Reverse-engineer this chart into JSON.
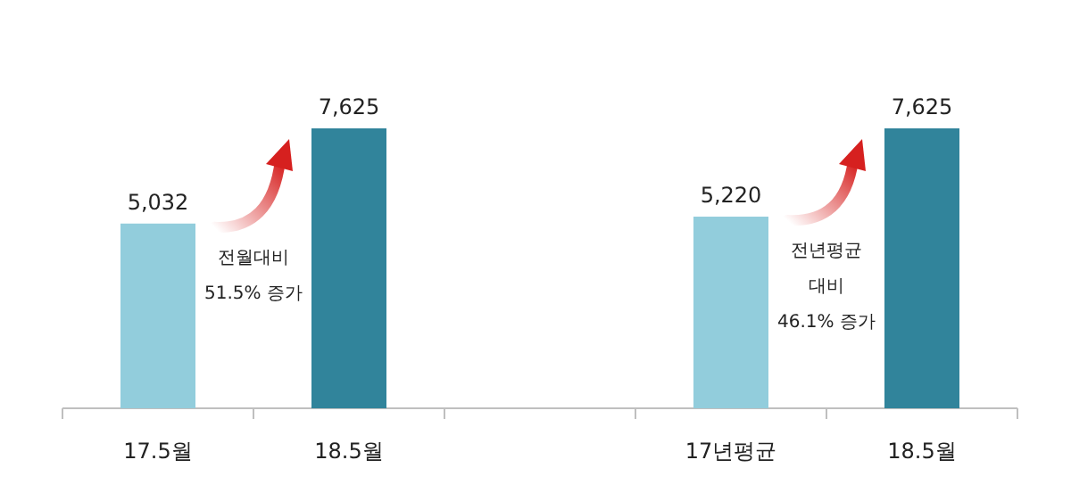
{
  "chart_data": {
    "type": "bar",
    "categories": [
      "17.5월",
      "18.5월",
      null,
      "17년평균",
      "18.5월"
    ],
    "values": [
      5032,
      7625,
      null,
      5220,
      7625
    ],
    "colors": [
      "#92cddc",
      "#31849b",
      null,
      "#92cddc",
      "#31849b"
    ],
    "value_labels": [
      "5,032",
      "7,625",
      null,
      "5,220",
      "7,625"
    ],
    "annotations": [
      "전월대비\n51.5% 증가",
      "전년평균\n대비\n46.1% 증가"
    ]
  }
}
